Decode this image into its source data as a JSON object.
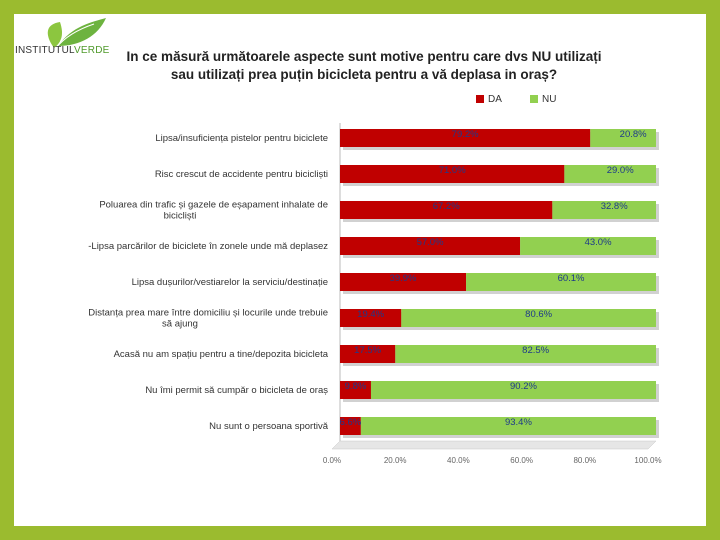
{
  "logo": {
    "text_a": "INSTITUTUL",
    "text_b": "VERDE"
  },
  "title_lines": [
    "In ce măsură următoarele aspecte sunt motive pentru care dvs NU utilizați",
    "sau utilizați prea puțin bicicleta pentru a vă deplasa in oraș?"
  ],
  "colors": {
    "da": "#c00000",
    "nu": "#92d050",
    "frame": "#9bbb2f"
  },
  "chart_data": {
    "type": "bar",
    "orientation": "horizontal",
    "stacked": "100%",
    "categories": [
      [
        "Lipsa/insuficiența pistelor pentru biciclete"
      ],
      [
        "Risc crescut de accidente pentru bicicliști"
      ],
      [
        "Poluarea din trafic și gazele de eșapament inhalate de",
        "bicicliști"
      ],
      [
        "-Lipsa parcărilor de biciclete în  zonele unde mă deplasez"
      ],
      [
        "Lipsa dușurilor/vestiarelor la serviciu/destinație"
      ],
      [
        "Distanța prea mare între domiciliu și locurile unde trebuie",
        "să ajung"
      ],
      [
        "Acasă nu am spațiu pentru a  tine/depozita bicicleta"
      ],
      [
        "Nu îmi permit să cumpăr o bicicleta de oraș"
      ],
      [
        "Nu sunt o persoana sportivă"
      ]
    ],
    "series": [
      {
        "name": "DA",
        "values": [
          79.2,
          71.0,
          67.2,
          57.0,
          39.9,
          19.4,
          17.5,
          9.8,
          6.6
        ],
        "labels": [
          "79.2%",
          "71.0%",
          "67.2%",
          "57.0%",
          "39.9%",
          "19.4%",
          "17.5%",
          "9.8%",
          "6.6%"
        ]
      },
      {
        "name": "NU",
        "values": [
          20.8,
          29.0,
          32.8,
          43.0,
          60.1,
          80.6,
          82.5,
          90.2,
          93.4
        ],
        "labels": [
          "20.8%",
          "29.0%",
          "32.8%",
          "43.0%",
          "60.1%",
          "80.6%",
          "82.5%",
          "90.2%",
          "93.4%"
        ]
      }
    ],
    "xlim": [
      0,
      100
    ],
    "xticks": [
      "0.0%",
      "20.0%",
      "40.0%",
      "60.0%",
      "80.0%",
      "100.0%"
    ],
    "legend_position": "top-right",
    "grid": false
  }
}
